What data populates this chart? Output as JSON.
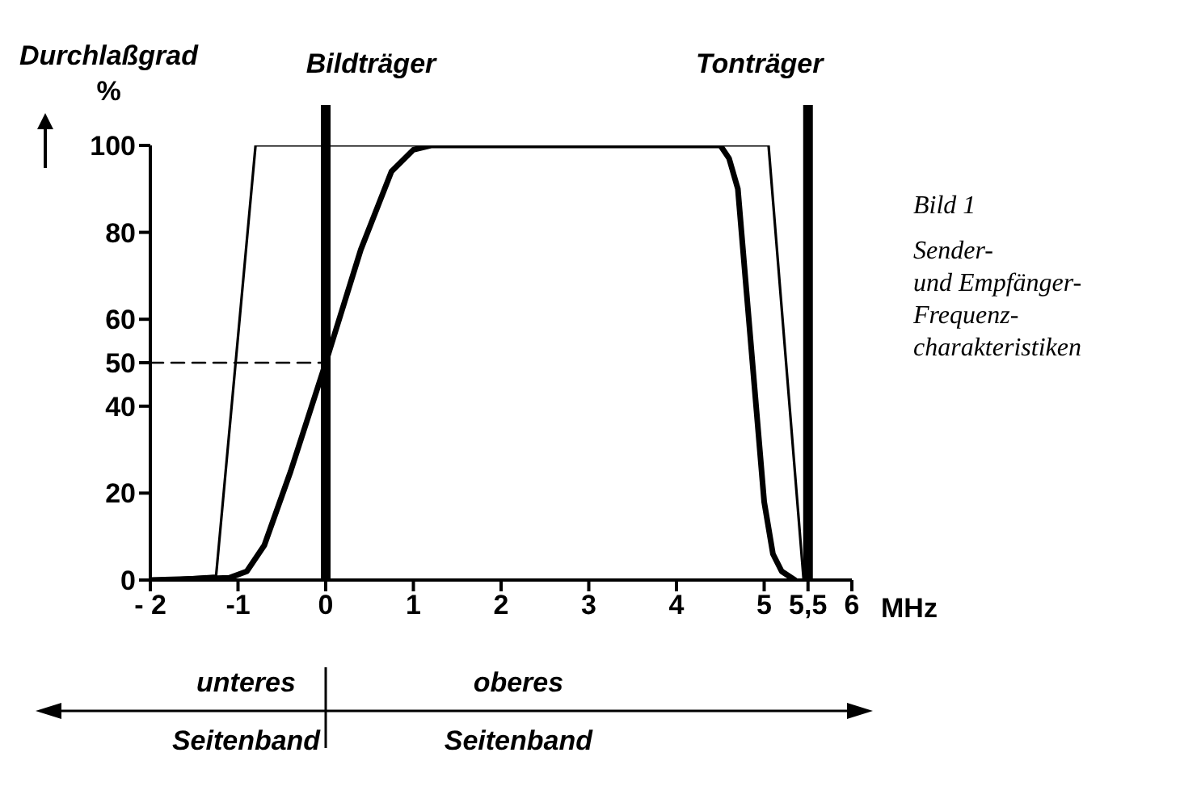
{
  "chart_data": {
    "type": "line",
    "ylabel": "Durchlaßgrad\n%",
    "xlabel": "MHz",
    "xlim": [
      -2,
      6
    ],
    "ylim": [
      0,
      100
    ],
    "xticks": [
      {
        "value": -2,
        "label": "- 2"
      },
      {
        "value": -1,
        "label": "-1"
      },
      0,
      1,
      2,
      3,
      4,
      5,
      {
        "value": 5.5,
        "label": "5,5"
      },
      6
    ],
    "yticks": [
      0,
      20,
      40,
      50,
      60,
      80,
      100
    ],
    "series": [
      {
        "color": "#000000",
        "x": [
          -2,
          -1.25,
          -0.8,
          5.05,
          5.45
        ],
        "values": [
          0,
          1,
          100,
          100,
          0
        ]
      },
      {
        "color": "#000000",
        "x": [
          -2,
          -1.1,
          -0.9,
          -0.7,
          -0.4,
          0,
          0.4,
          0.75,
          1.0,
          1.2,
          4.5,
          4.6,
          4.7,
          5.0,
          5.1,
          5.2,
          5.35
        ],
        "values": [
          0,
          0.5,
          2,
          8,
          25,
          50,
          76,
          94,
          99,
          100,
          100,
          97,
          90,
          18,
          6,
          2,
          0
        ]
      },
      {
        "color": "#000000",
        "x": [
          -2,
          0
        ],
        "values": [
          50,
          50
        ],
        "line_style": "dashed"
      }
    ],
    "ref_lines": [
      {
        "axis": "x",
        "value": 0,
        "label": "Bildträger",
        "color": "#000000"
      },
      {
        "axis": "x",
        "value": 5.5,
        "label": "Tonträger",
        "color": "#000000"
      }
    ],
    "annotations": [
      "Bild 1",
      "Sender-\nund Empfänger-\nFrequenz-\ncharakteristiken",
      "unteres\nSeitenband",
      "oberes\nSeitenband"
    ],
    "grid": false,
    "legend": false,
    "marker": "none"
  }
}
